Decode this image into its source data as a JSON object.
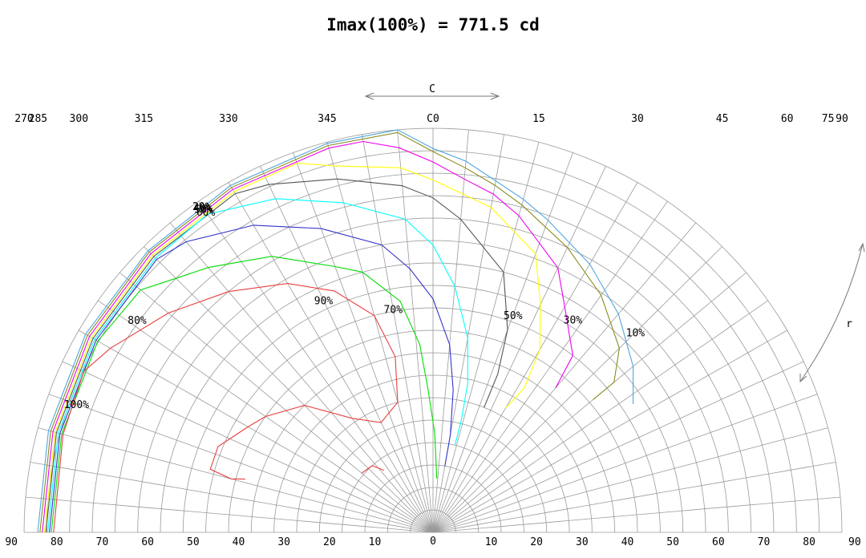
{
  "chart_data": {
    "type": "isocandela-diagram",
    "title": "Imax(100%) = 771.5 cd",
    "top_axis_label": "C",
    "side_axis_label": "r",
    "c_ticks": [
      "270",
      "285",
      "300",
      "315",
      "330",
      "345",
      "C0",
      "15",
      "30",
      "45",
      "60",
      "75",
      "90"
    ],
    "c_values": [
      270,
      285,
      300,
      315,
      330,
      345,
      0,
      15,
      30,
      45,
      60,
      75,
      90
    ],
    "left_gamma_ticks": [
      "90",
      "80",
      "70",
      "60",
      "50",
      "40",
      "30",
      "20",
      "10",
      "0"
    ],
    "right_gamma_ticks": [
      "90",
      "80",
      "70",
      "60",
      "50",
      "40",
      "30",
      "20",
      "10"
    ],
    "max_marker": {
      "c": 290,
      "gamma": 84.5
    },
    "grid": true,
    "series": [
      {
        "name": "10%",
        "label": "10%",
        "color": "#4fa6dc",
        "points": [
          [
            270,
            87
          ],
          [
            285,
            87.6
          ],
          [
            300,
            88.3
          ],
          [
            315,
            88.7
          ],
          [
            330,
            89.2
          ],
          [
            345,
            89.7
          ],
          [
            355,
            90
          ],
          [
            0,
            85.5
          ],
          [
            5,
            83
          ],
          [
            10,
            79.5
          ],
          [
            15,
            76.8
          ],
          [
            20,
            74
          ],
          [
            30,
            69
          ],
          [
            40,
            63.5
          ],
          [
            50,
            57.5
          ],
          [
            57,
            52.5
          ]
        ]
      },
      {
        "name": "20%",
        "label": "20%",
        "color": "#8a8a1e",
        "points": [
          [
            270,
            86.5
          ],
          [
            285,
            87.1
          ],
          [
            300,
            87.8
          ],
          [
            315,
            88.3
          ],
          [
            330,
            88.7
          ],
          [
            345,
            89.2
          ],
          [
            355,
            89.4
          ],
          [
            0,
            84.8
          ],
          [
            5,
            81.5
          ],
          [
            10,
            78.5
          ],
          [
            15,
            75.5
          ],
          [
            25,
            70
          ],
          [
            35,
            64.5
          ],
          [
            45,
            58
          ],
          [
            50,
            52
          ],
          [
            50,
            46
          ]
        ]
      },
      {
        "name": "30%",
        "label": "30%",
        "color": "#ee00ee",
        "points": [
          [
            270,
            86
          ],
          [
            285,
            86.6
          ],
          [
            300,
            87.3
          ],
          [
            315,
            87.8
          ],
          [
            330,
            88.2
          ],
          [
            345,
            88.6
          ],
          [
            350,
            88.4
          ],
          [
            355,
            86
          ],
          [
            0,
            82.5
          ],
          [
            5,
            79
          ],
          [
            10,
            76.5
          ],
          [
            15,
            73
          ],
          [
            25,
            65
          ],
          [
            30,
            58
          ],
          [
            38,
            50
          ],
          [
            40,
            42
          ]
        ]
      },
      {
        "name": "40%",
        "label": "40%",
        "color": "#ffff00",
        "points": [
          [
            270,
            85.5
          ],
          [
            285,
            86.1
          ],
          [
            300,
            86.8
          ],
          [
            315,
            87.3
          ],
          [
            330,
            87.6
          ],
          [
            340,
            87.5
          ],
          [
            345,
            84.5
          ],
          [
            355,
            81.5
          ],
          [
            0,
            78.5
          ],
          [
            10,
            73.5
          ],
          [
            20,
            66
          ],
          [
            25,
            56
          ],
          [
            30,
            47
          ],
          [
            32,
            38
          ],
          [
            30,
            32
          ]
        ]
      },
      {
        "name": "50%",
        "label": "50%",
        "color": "#555555",
        "points": [
          [
            270,
            85.2
          ],
          [
            285,
            85.8
          ],
          [
            300,
            86.4
          ],
          [
            315,
            86.9
          ],
          [
            330,
            87.1
          ],
          [
            335,
            85.5
          ],
          [
            345,
            81.5
          ],
          [
            355,
            77.5
          ],
          [
            0,
            74.5
          ],
          [
            5,
            70
          ],
          [
            15,
            60
          ],
          [
            20,
            48
          ],
          [
            22,
            38
          ],
          [
            22,
            30
          ]
        ]
      },
      {
        "name": "60%",
        "label": "60%",
        "color": "#00ffff",
        "points": [
          [
            270,
            84.8
          ],
          [
            285,
            85.4
          ],
          [
            300,
            86
          ],
          [
            315,
            86.4
          ],
          [
            325,
            86.5
          ],
          [
            335,
            82
          ],
          [
            345,
            76
          ],
          [
            355,
            70
          ],
          [
            0,
            64
          ],
          [
            5,
            55
          ],
          [
            10,
            44
          ],
          [
            13,
            34
          ],
          [
            14,
            26
          ],
          [
            14,
            20
          ]
        ]
      },
      {
        "name": "70%",
        "label": "70%",
        "color": "#3333cc",
        "points": [
          [
            270,
            84.4
          ],
          [
            285,
            85
          ],
          [
            300,
            85.6
          ],
          [
            315,
            86
          ],
          [
            320,
            84.5
          ],
          [
            330,
            79
          ],
          [
            340,
            72
          ],
          [
            350,
            65
          ],
          [
            355,
            59
          ],
          [
            0,
            52
          ],
          [
            5,
            42
          ],
          [
            8,
            32
          ],
          [
            10,
            22
          ],
          [
            10,
            15
          ]
        ]
      },
      {
        "name": "80%",
        "label": "80%",
        "color": "#00dd00",
        "points": [
          [
            270,
            84
          ],
          [
            285,
            84.6
          ],
          [
            300,
            85.2
          ],
          [
            310,
            84
          ],
          [
            315,
            80
          ],
          [
            320,
            77
          ],
          [
            330,
            71
          ],
          [
            340,
            63
          ],
          [
            345,
            60
          ],
          [
            352,
            52
          ],
          [
            356,
            42
          ],
          [
            358,
            32
          ],
          [
            1,
            22
          ],
          [
            4,
            12
          ]
        ]
      },
      {
        "name": "100%",
        "label": "100%",
        "color": "#e84040",
        "points": [
          [
            270,
            83.5
          ],
          [
            285,
            84.3
          ],
          [
            295,
            84.8
          ],
          [
            300,
            82
          ],
          [
            310,
            76
          ],
          [
            320,
            70
          ],
          [
            330,
            64
          ],
          [
            338,
            58
          ],
          [
            345,
            50
          ],
          [
            348,
            40
          ],
          [
            345,
            30
          ],
          [
            335,
            27
          ],
          [
            325,
            31
          ],
          [
            315,
            40
          ],
          [
            305,
            45
          ],
          [
            300,
            47
          ],
          [
            292,
            51
          ],
          [
            286,
            51
          ],
          [
            285,
            46
          ],
          [
            286,
            43
          ]
        ],
        "extra_points": [
          [
            310,
            20.5
          ],
          [
            318,
            20
          ],
          [
            322,
            17.5
          ]
        ]
      }
    ],
    "contour_labels": [
      {
        "text": "10%",
        "c": 45,
        "gamma": 63
      },
      {
        "text": "30%",
        "c": 33,
        "gamma": 56.5
      },
      {
        "text": "50%",
        "c": 20,
        "gamma": 51.5
      },
      {
        "text": "70%",
        "c": 350,
        "gamma": 50.5
      },
      {
        "text": "90%",
        "c": 335,
        "gamma": 57
      },
      {
        "text": "80%",
        "c": 306,
        "gamma": 80.5
      },
      {
        "text": "100%",
        "c": 290,
        "gamma": 83.5
      },
      {
        "text": "20%",
        "c": 325,
        "gamma": 88.7
      },
      {
        "text": "40%",
        "c": 325,
        "gamma": 88.4
      },
      {
        "text": "50%",
        "c": 325,
        "gamma": 88.0
      },
      {
        "text": "60%",
        "c": 325,
        "gamma": 87.2
      }
    ]
  }
}
